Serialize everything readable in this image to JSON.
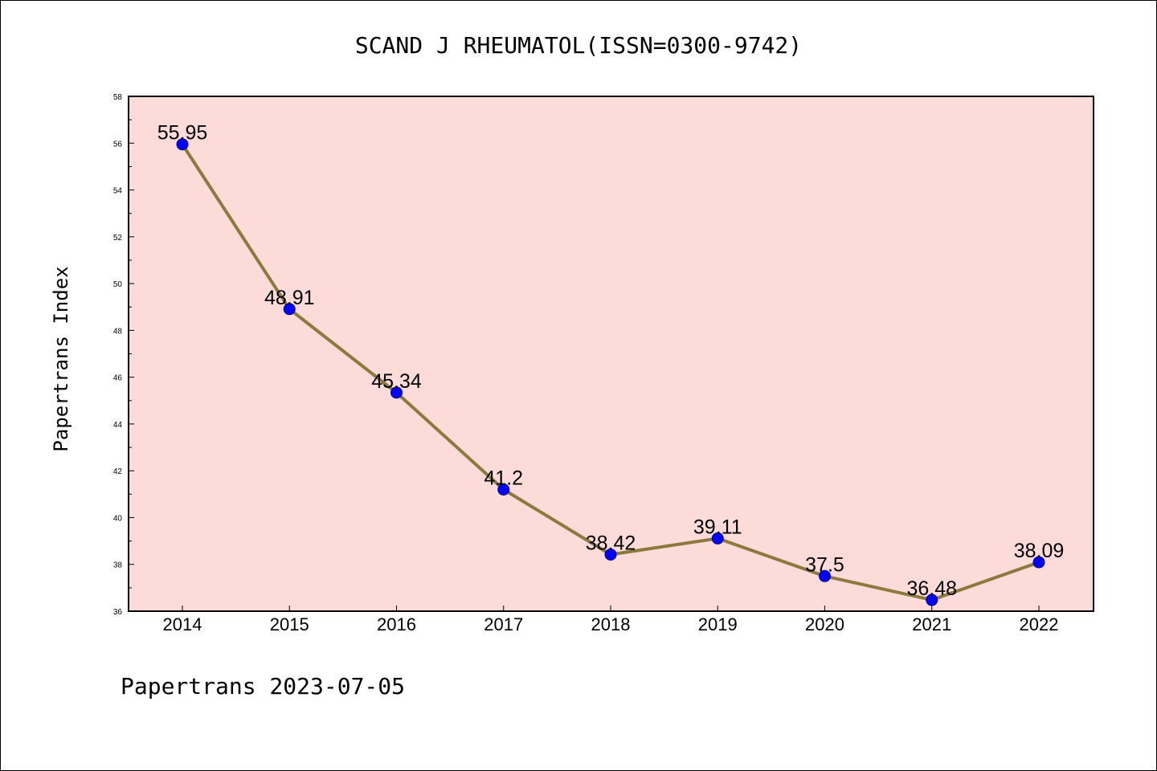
{
  "chart_data": {
    "type": "line",
    "title": "SCAND J RHEUMATOL(ISSN=0300-9742)",
    "ylabel": "Papertrans Index",
    "xlabel": "",
    "footer": "Papertrans 2023-07-05",
    "categories": [
      "2014",
      "2015",
      "2016",
      "2017",
      "2018",
      "2019",
      "2020",
      "2021",
      "2022"
    ],
    "values": [
      55.95,
      48.91,
      45.34,
      41.2,
      38.42,
      39.11,
      37.5,
      36.48,
      38.09
    ],
    "data_labels": [
      "55.95",
      "48.91",
      "45.34",
      "41.2",
      "38.42",
      "39.11",
      "37.5",
      "36.48",
      "38.09"
    ],
    "ylim": [
      36,
      58
    ],
    "yticks": [
      "36",
      "38",
      "40",
      "42",
      "44",
      "46",
      "48",
      "50",
      "52",
      "54",
      "56",
      "58"
    ],
    "grid": false,
    "legend": "none",
    "colors": {
      "plot_background": "#fddbd8",
      "line": "#8c7a3c",
      "marker": "#0000ff",
      "marker_edge": "#000080"
    }
  }
}
